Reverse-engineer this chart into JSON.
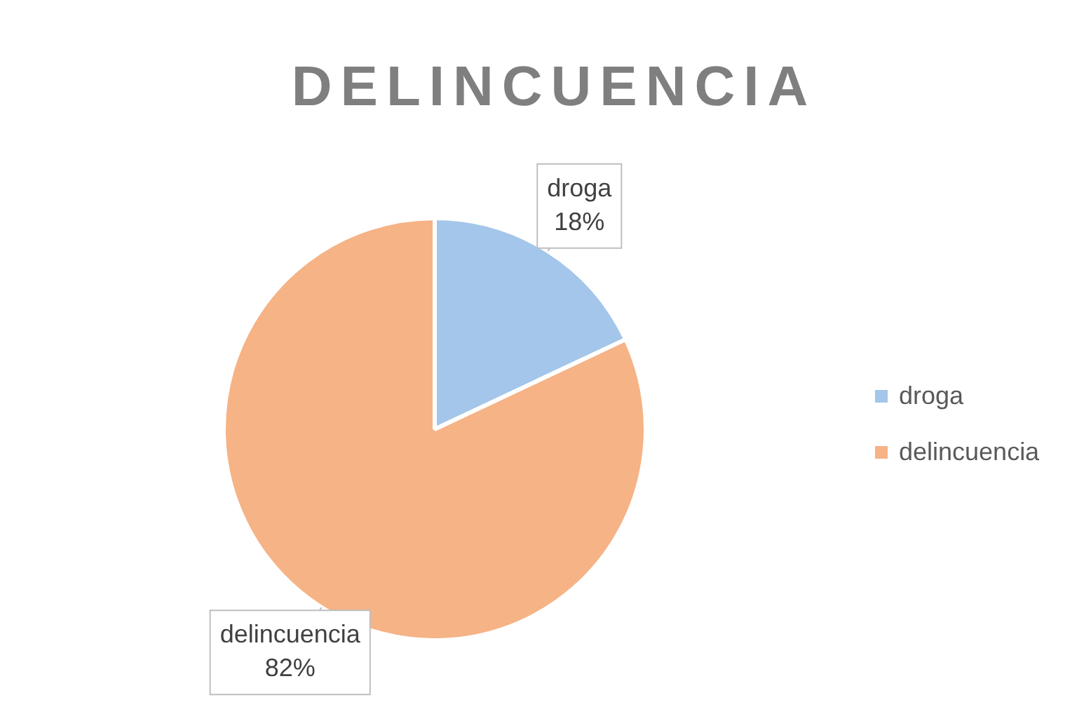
{
  "chart_data": {
    "type": "pie",
    "title": "DELINCUENCIA",
    "categories": [
      "droga",
      "delincuencia"
    ],
    "values": [
      18,
      82
    ],
    "value_labels": [
      "18%",
      "82%"
    ],
    "colors": [
      "#a3c6ea",
      "#f5b386"
    ],
    "legend": "right"
  }
}
